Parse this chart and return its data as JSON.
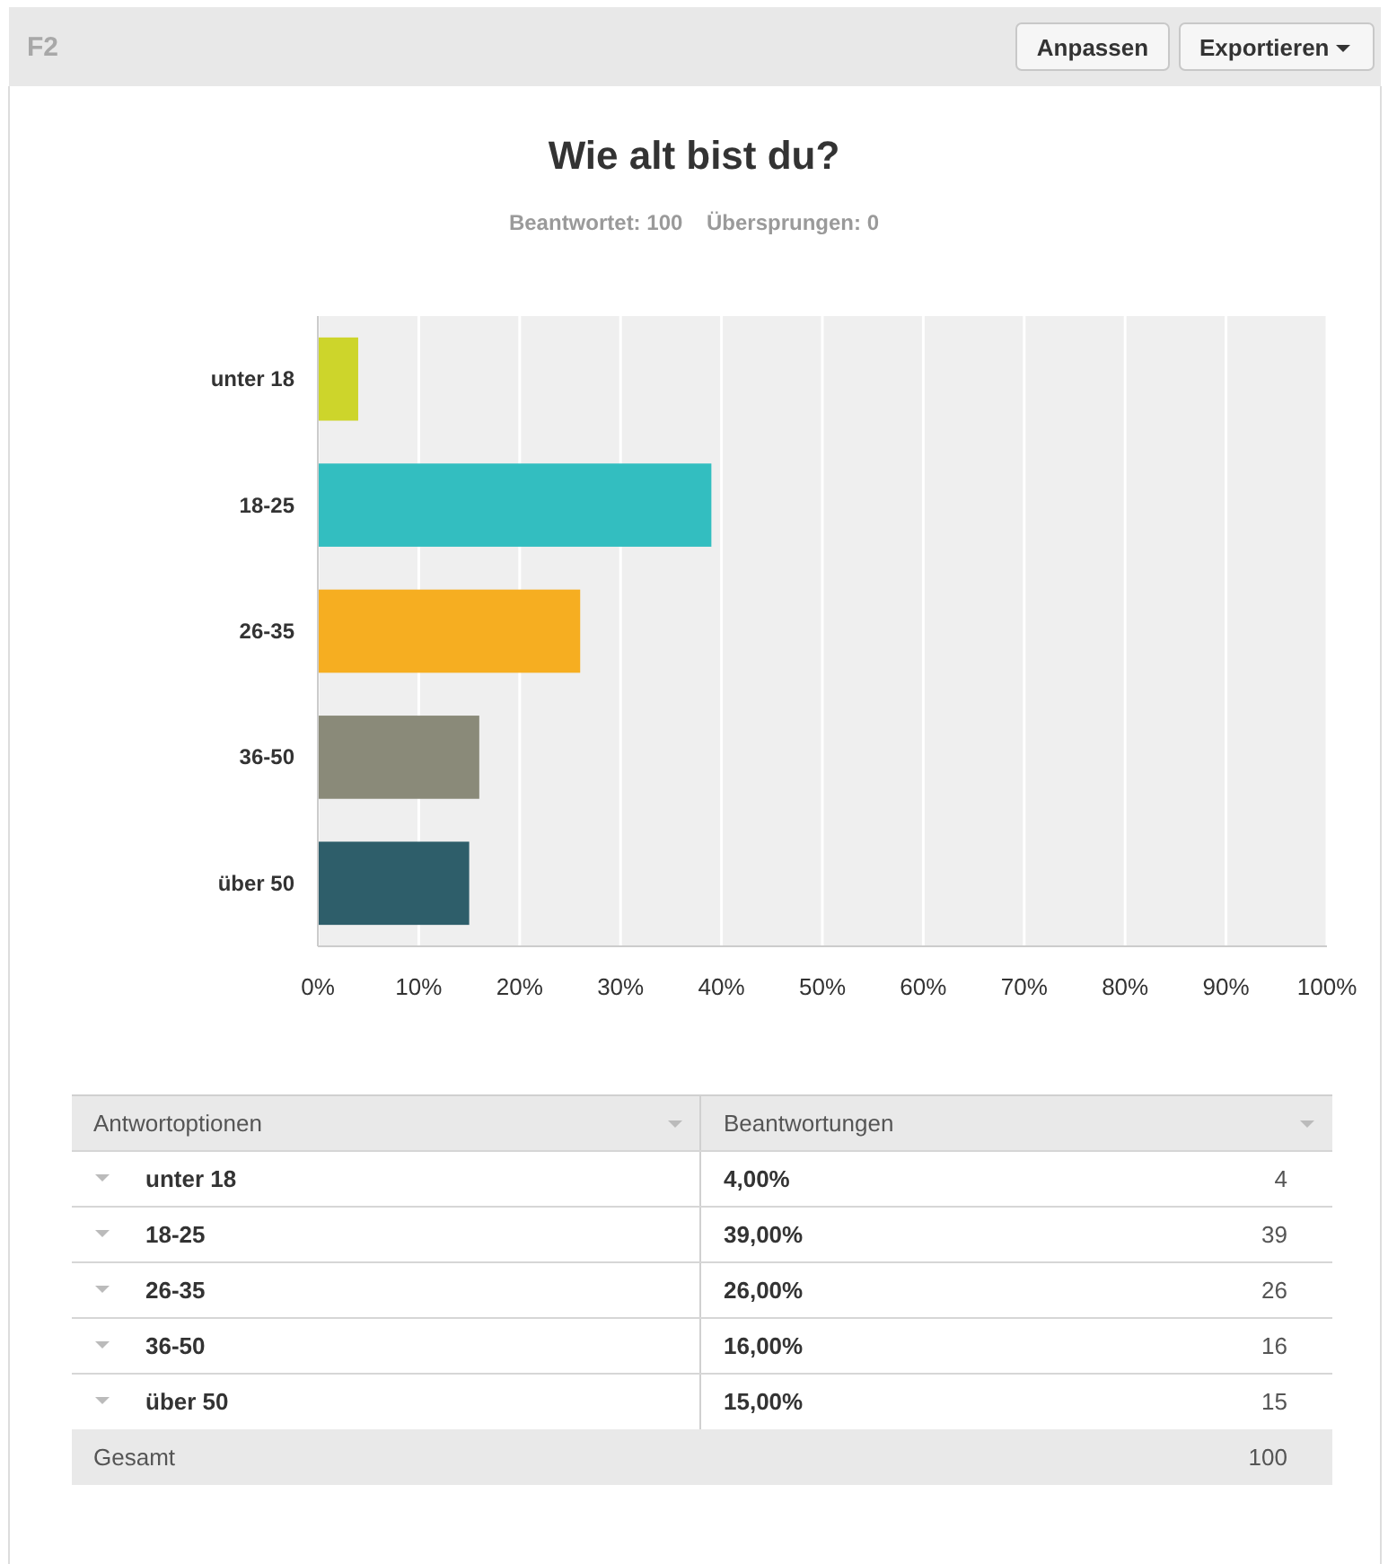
{
  "chart_data": [
    {
      "type": "bar",
      "orientation": "horizontal",
      "title": "Wie alt bist du?",
      "subtitle": "Beantwortet: 100    Übersprungen: 0",
      "categories": [
        "unter 18",
        "18-25",
        "26-35",
        "36-50",
        "über 50"
      ],
      "values": [
        4,
        39,
        26,
        16,
        15
      ],
      "colors": [
        "#cdd52b",
        "#33bec0",
        "#f6ae21",
        "#8a8a79",
        "#2e5e6a"
      ],
      "xlim": [
        0,
        100
      ],
      "xticks": [
        {
          "value": 0,
          "label": "0%"
        },
        {
          "value": 10,
          "label": "10%"
        },
        {
          "value": 20,
          "label": "20%"
        },
        {
          "value": 30,
          "label": "30%"
        },
        {
          "value": 40,
          "label": "40%"
        },
        {
          "value": 50,
          "label": "50%"
        },
        {
          "value": 60,
          "label": "60%"
        },
        {
          "value": 70,
          "label": "70%"
        },
        {
          "value": 80,
          "label": "80%"
        },
        {
          "value": 90,
          "label": "90%"
        },
        {
          "value": 100,
          "label": "100%"
        }
      ],
      "grid": "x",
      "annotations": [
        "F2",
        "Anpassen",
        "Exportieren"
      ]
    },
    {
      "type": "other",
      "annotations": [
        "Antwortoptionen",
        "Beantwortungen",
        "unter 18",
        "4,00%",
        "4",
        "18-25",
        "39,00%",
        "39",
        "26-35",
        "26,00%",
        "26",
        "36-50",
        "16,00%",
        "16",
        "über 50",
        "15,00%",
        "15",
        "Gesamt",
        "100"
      ]
    }
  ]
}
